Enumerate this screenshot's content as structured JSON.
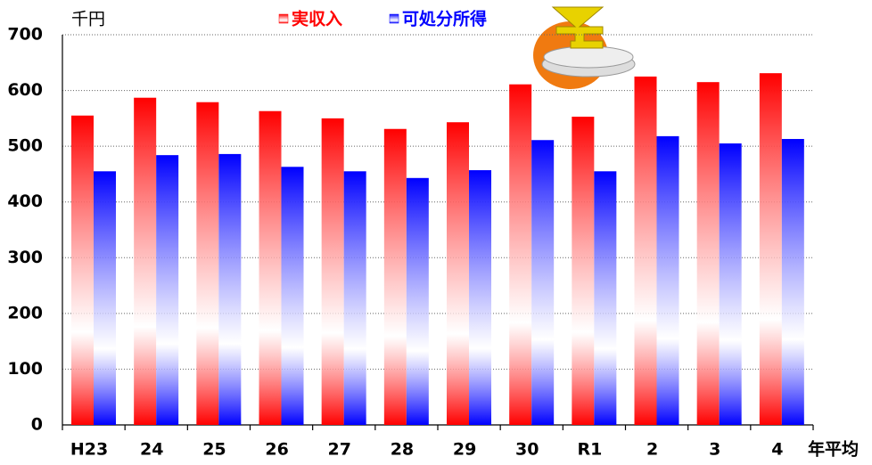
{
  "chart_data": {
    "type": "bar",
    "y_unit": "千円",
    "x_label": "年平均",
    "categories": [
      "H23",
      "24",
      "25",
      "26",
      "27",
      "28",
      "29",
      "30",
      "R1",
      "2",
      "3",
      "4"
    ],
    "series": [
      {
        "name": "実収入",
        "color": "#ff0000",
        "values": [
          555,
          587,
          579,
          563,
          550,
          531,
          543,
          611,
          553,
          625,
          615,
          631
        ]
      },
      {
        "name": "可処分所得",
        "color": "#0000ff",
        "values": [
          455,
          484,
          486,
          463,
          455,
          443,
          457,
          511,
          455,
          518,
          505,
          513
        ]
      }
    ],
    "ylim": [
      0,
      700
    ],
    "yticks": [
      0,
      100,
      200,
      300,
      400,
      500,
      600,
      700
    ],
    "grid": true
  }
}
